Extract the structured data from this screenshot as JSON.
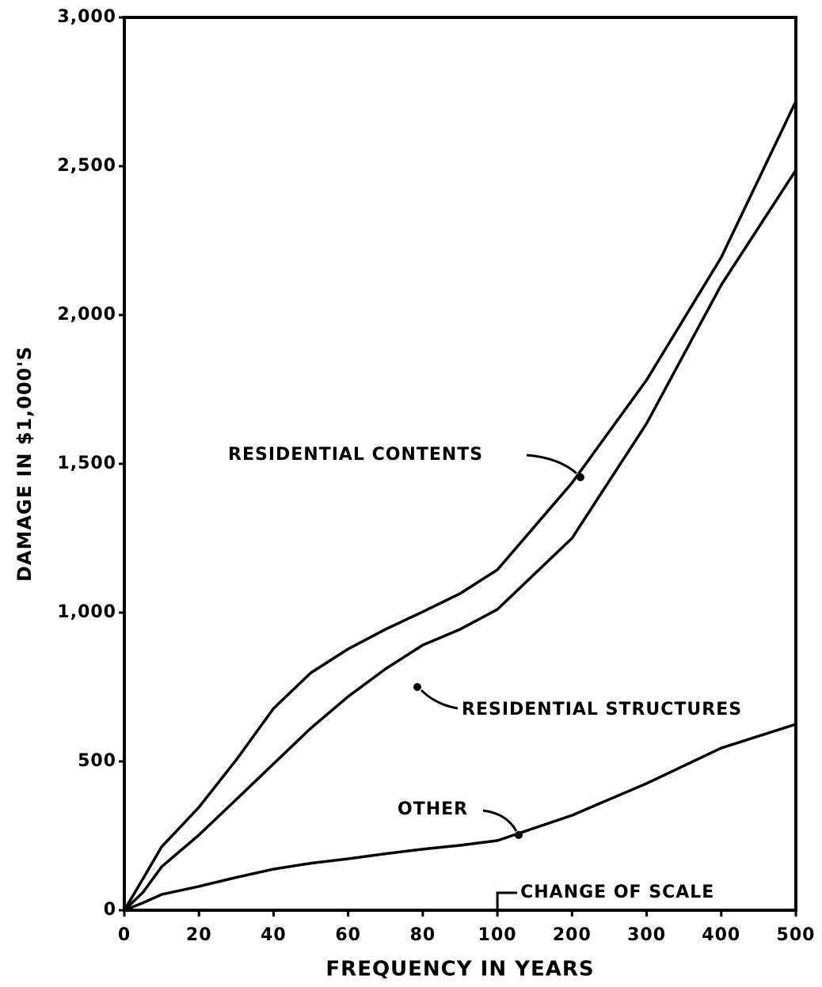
{
  "chart_data": {
    "type": "line",
    "xlabel": "FREQUENCY IN YEARS",
    "ylabel": "DAMAGE IN $1,000'S",
    "x": [
      0,
      5,
      10,
      20,
      30,
      40,
      50,
      60,
      70,
      80,
      90,
      100,
      200,
      300,
      400,
      500
    ],
    "series": [
      {
        "name": "RESIDENTIAL CONTENTS",
        "color": "#000000",
        "values": [
          0,
          106,
          213,
          346,
          505,
          678,
          798,
          878,
          944,
          1003,
          1064,
          1144,
          1436,
          1782,
          2194,
          2718
        ]
      },
      {
        "name": "RESIDENTIAL STRUCTURES",
        "color": "#000000",
        "values": [
          0,
          60,
          146,
          253,
          372,
          492,
          612,
          718,
          811,
          891,
          944,
          1011,
          1250,
          1636,
          2101,
          2487
        ]
      },
      {
        "name": "OTHER",
        "color": "#000000",
        "values": [
          0,
          25,
          53,
          80,
          110,
          138,
          158,
          173,
          190,
          205,
          218,
          234,
          319,
          426,
          545,
          625
        ]
      }
    ],
    "annotations": [
      {
        "text": "CHANGE OF SCALE",
        "x": 100
      }
    ],
    "xlim": [
      0,
      500
    ],
    "xticks": [
      0,
      20,
      40,
      60,
      80,
      100,
      200,
      300,
      400,
      500
    ],
    "ylim": [
      0,
      3000
    ],
    "yticks": [
      0,
      500,
      {
        "value": 1000,
        "label": "1,000"
      },
      {
        "value": 1500,
        "label": "1,500"
      },
      {
        "value": 2000,
        "label": "2,000"
      },
      {
        "value": 2500,
        "label": "2,500"
      },
      {
        "value": 3000,
        "label": "3,000"
      }
    ]
  }
}
